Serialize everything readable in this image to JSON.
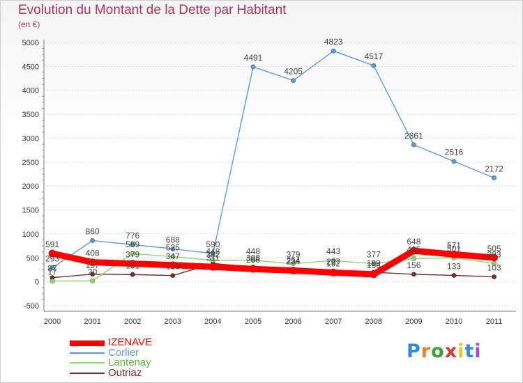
{
  "title": "Evolution du Montant de la Dette par Habitant",
  "unit_label": "(en €)",
  "brand": [
    "P",
    "r",
    "o",
    "x",
    "i",
    "t",
    "i"
  ],
  "brand_colors": [
    "#2e8bd6",
    "#e8832a",
    "#3aa23a",
    "#d83a3a",
    "#e8c52a",
    "#2e8bd6",
    "#a04ad6"
  ],
  "chart_data": {
    "type": "line",
    "x": [
      "2000",
      "2001",
      "2002",
      "2003",
      "2004",
      "2005",
      "2006",
      "2007",
      "2008",
      "2009",
      "2010",
      "2011"
    ],
    "ylim": [
      -500,
      5000
    ],
    "yticks": [
      "-500",
      "0",
      "500",
      "1000",
      "1500",
      "2000",
      "2500",
      "3000",
      "3500",
      "4000",
      "4500",
      "5000"
    ],
    "grid": true,
    "series": [
      {
        "name": "IZENAVE",
        "color": "#ff0000",
        "values": [
          591,
          408,
          379,
          347,
          311,
          268,
          234,
          192,
          156,
          648,
          571,
          505
        ],
        "labels": [
          "591",
          "408",
          "379",
          "347",
          "311",
          "268",
          "234",
          "192",
          "156",
          "648",
          "571",
          "505"
        ]
      },
      {
        "name": "Corlier",
        "color": "#5b9bd5",
        "values": [
          293,
          860,
          776,
          688,
          590,
          4491,
          4205,
          4823,
          4517,
          2861,
          2516,
          2172
        ],
        "labels": [
          "293",
          "860",
          "776",
          "688",
          "590",
          "4491",
          "4205",
          "4823",
          "4517",
          "2861",
          "2516",
          "2172"
        ]
      },
      {
        "name": "Lantenay",
        "color": "#8fd86a",
        "values": [
          17,
          20,
          589,
          525,
          448,
          448,
          379,
          443,
          377,
          485,
          501,
          383
        ],
        "labels": [
          "17",
          "20",
          "589",
          "525",
          "448",
          "448",
          "379",
          "443",
          "377",
          "485",
          "501",
          "383"
        ]
      },
      {
        "name": "Outriaz",
        "color": "#7a2a2a",
        "values": [
          87,
          157,
          151,
          130,
          382,
          308,
          254,
          227,
          199,
          156,
          133,
          103
        ],
        "labels": [
          "87",
          "157",
          "151",
          "130",
          "382",
          "308",
          "254",
          "227",
          "199",
          "156",
          "133",
          "103"
        ]
      }
    ]
  }
}
